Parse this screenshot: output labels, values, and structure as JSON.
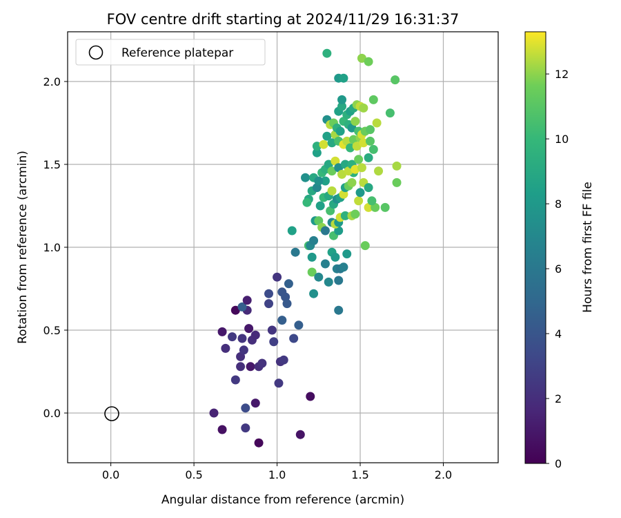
{
  "chart_data": {
    "type": "scatter",
    "title": "FOV centre drift starting at 2024/11/29 16:31:37",
    "xlabel": "Angular distance from reference (arcmin)",
    "ylabel": "Rotation from reference (arcmin)",
    "xlim": [
      -0.26,
      2.33
    ],
    "ylim": [
      -0.3,
      2.3
    ],
    "xticks": [
      0.0,
      0.5,
      1.0,
      1.5,
      2.0
    ],
    "xtick_labels": [
      "0.0",
      "0.5",
      "1.0",
      "1.5",
      "2.0"
    ],
    "yticks": [
      0.0,
      0.5,
      1.0,
      1.5,
      2.0
    ],
    "ytick_labels": [
      "0.0",
      "0.5",
      "1.0",
      "1.5",
      "2.0"
    ],
    "grid": true,
    "legend": {
      "placement": "top-left",
      "entries": [
        "Reference platepar"
      ]
    },
    "reference_marker": {
      "label": "Reference platepar",
      "x": 0.0,
      "y": 0.0
    },
    "colorbar": {
      "label": "Hours from first FF file",
      "colormap": "viridis",
      "range": [
        0,
        13.3
      ],
      "ticks": [
        0,
        2,
        4,
        6,
        8,
        10,
        12
      ],
      "tick_labels": [
        "0",
        "2",
        "4",
        "6",
        "8",
        "10",
        "12"
      ]
    },
    "points": [
      [
        0.62,
        -0.0,
        1.5
      ],
      [
        0.67,
        -0.1,
        0.7
      ],
      [
        0.81,
        -0.09,
        2.5
      ],
      [
        0.89,
        -0.18,
        0.3
      ],
      [
        0.87,
        0.06,
        1.0
      ],
      [
        0.81,
        0.03,
        3.5
      ],
      [
        1.14,
        -0.13,
        0.8
      ],
      [
        1.2,
        0.1,
        0.5
      ],
      [
        0.75,
        0.2,
        2.5
      ],
      [
        0.78,
        0.28,
        2.0
      ],
      [
        0.78,
        0.34,
        2.0
      ],
      [
        0.8,
        0.38,
        2.3
      ],
      [
        0.82,
        0.62,
        1.8
      ],
      [
        0.75,
        0.62,
        0.3
      ],
      [
        0.79,
        0.64,
        4.5
      ],
      [
        0.82,
        0.68,
        1.3
      ],
      [
        0.67,
        0.49,
        1.0
      ],
      [
        0.73,
        0.46,
        2.5
      ],
      [
        0.69,
        0.39,
        2.0
      ],
      [
        0.79,
        0.45,
        2.3
      ],
      [
        0.83,
        0.51,
        1.0
      ],
      [
        0.85,
        0.44,
        2.0
      ],
      [
        0.87,
        0.47,
        1.8
      ],
      [
        0.84,
        0.28,
        1.0
      ],
      [
        0.89,
        0.28,
        2.0
      ],
      [
        0.91,
        0.3,
        2.2
      ],
      [
        0.97,
        0.5,
        2.3
      ],
      [
        0.98,
        0.43,
        2.8
      ],
      [
        1.0,
        0.82,
        2.3
      ],
      [
        0.95,
        0.66,
        3.0
      ],
      [
        0.95,
        0.72,
        3.5
      ],
      [
        1.01,
        0.18,
        2.5
      ],
      [
        1.02,
        0.31,
        2.2
      ],
      [
        1.04,
        0.32,
        2.5
      ],
      [
        1.03,
        0.56,
        4.5
      ],
      [
        1.05,
        0.7,
        4.0
      ],
      [
        1.06,
        0.66,
        4.2
      ],
      [
        1.03,
        0.73,
        4.0
      ],
      [
        1.07,
        0.78,
        4.6
      ],
      [
        1.1,
        0.45,
        3.3
      ],
      [
        1.13,
        0.53,
        4.5
      ],
      [
        1.11,
        0.97,
        6.0
      ],
      [
        1.09,
        1.1,
        8.5
      ],
      [
        1.19,
        1.01,
        10.5
      ],
      [
        1.2,
        1.01,
        7.0
      ],
      [
        1.21,
        0.94,
        8.0
      ],
      [
        1.21,
        0.85,
        11.5
      ],
      [
        1.22,
        0.72,
        7.5
      ],
      [
        1.22,
        1.04,
        6.5
      ],
      [
        1.25,
        0.82,
        7.0
      ],
      [
        1.29,
        0.9,
        6.5
      ],
      [
        1.31,
        0.79,
        7.0
      ],
      [
        1.33,
        0.97,
        8.5
      ],
      [
        1.35,
        0.94,
        8.0
      ],
      [
        1.36,
        0.87,
        6.5
      ],
      [
        1.38,
        0.87,
        6.0
      ],
      [
        1.37,
        0.8,
        6.0
      ],
      [
        1.37,
        0.62,
        6.0
      ],
      [
        1.4,
        0.88,
        6.5
      ],
      [
        1.42,
        0.96,
        8.0
      ],
      [
        1.34,
        1.07,
        10.5
      ],
      [
        1.37,
        1.1,
        8.2
      ],
      [
        1.53,
        1.01,
        11.5
      ],
      [
        1.23,
        1.16,
        8.0
      ],
      [
        1.25,
        1.16,
        11.2
      ],
      [
        1.27,
        1.12,
        12.0
      ],
      [
        1.29,
        1.1,
        6.0
      ],
      [
        1.33,
        1.15,
        7.0
      ],
      [
        1.35,
        1.14,
        12.5
      ],
      [
        1.37,
        1.15,
        8.0
      ],
      [
        1.38,
        1.18,
        12.8
      ],
      [
        1.41,
        1.19,
        9.5
      ],
      [
        1.45,
        1.19,
        12.3
      ],
      [
        1.47,
        1.2,
        11.6
      ],
      [
        1.55,
        1.24,
        12.8
      ],
      [
        1.59,
        1.24,
        11.5
      ],
      [
        1.19,
        1.29,
        9.0
      ],
      [
        1.18,
        1.27,
        10.0
      ],
      [
        1.21,
        1.34,
        9.0
      ],
      [
        1.24,
        1.36,
        7.0
      ],
      [
        1.26,
        1.25,
        8.5
      ],
      [
        1.28,
        1.3,
        10.0
      ],
      [
        1.29,
        1.4,
        8.5
      ],
      [
        1.31,
        1.31,
        9.0
      ],
      [
        1.32,
        1.22,
        10.5
      ],
      [
        1.33,
        1.34,
        12.5
      ],
      [
        1.34,
        1.26,
        9.0
      ],
      [
        1.36,
        1.29,
        7.5
      ],
      [
        1.38,
        1.3,
        8.5
      ],
      [
        1.4,
        1.32,
        12.8
      ],
      [
        1.41,
        1.36,
        8.5
      ],
      [
        1.43,
        1.37,
        11.5
      ],
      [
        1.45,
        1.39,
        12.0
      ],
      [
        1.46,
        1.45,
        9.5
      ],
      [
        1.49,
        1.28,
        12.6
      ],
      [
        1.5,
        1.33,
        8.0
      ],
      [
        1.52,
        1.39,
        12.5
      ],
      [
        1.55,
        1.36,
        9.0
      ],
      [
        1.57,
        1.28,
        10.5
      ],
      [
        1.61,
        1.46,
        12.4
      ],
      [
        1.17,
        1.42,
        7.5
      ],
      [
        1.22,
        1.42,
        9.0
      ],
      [
        1.25,
        1.4,
        7.5
      ],
      [
        1.27,
        1.45,
        10.0
      ],
      [
        1.29,
        1.47,
        9.5
      ],
      [
        1.31,
        1.5,
        9.0
      ],
      [
        1.33,
        1.46,
        11.5
      ],
      [
        1.35,
        1.52,
        12.8
      ],
      [
        1.37,
        1.48,
        7.5
      ],
      [
        1.39,
        1.44,
        12.5
      ],
      [
        1.41,
        1.5,
        9.0
      ],
      [
        1.43,
        1.46,
        12.6
      ],
      [
        1.45,
        1.5,
        9.5
      ],
      [
        1.47,
        1.47,
        13.0
      ],
      [
        1.49,
        1.53,
        11.5
      ],
      [
        1.51,
        1.48,
        12.5
      ],
      [
        1.55,
        1.54,
        9.2
      ],
      [
        1.24,
        1.57,
        8.5
      ],
      [
        1.24,
        1.61,
        9.5
      ],
      [
        1.28,
        1.62,
        12.8
      ],
      [
        1.3,
        1.67,
        8.5
      ],
      [
        1.33,
        1.63,
        9.0
      ],
      [
        1.35,
        1.68,
        12.3
      ],
      [
        1.37,
        1.64,
        10.5
      ],
      [
        1.4,
        1.62,
        13.0
      ],
      [
        1.42,
        1.64,
        12.5
      ],
      [
        1.44,
        1.6,
        10.0
      ],
      [
        1.46,
        1.65,
        11.5
      ],
      [
        1.48,
        1.61,
        12.6
      ],
      [
        1.5,
        1.66,
        12.0
      ],
      [
        1.52,
        1.63,
        12.8
      ],
      [
        1.56,
        1.64,
        11.0
      ],
      [
        1.58,
        1.59,
        10.5
      ],
      [
        1.3,
        1.77,
        7.5
      ],
      [
        1.32,
        1.74,
        12.5
      ],
      [
        1.34,
        1.75,
        11.5
      ],
      [
        1.36,
        1.72,
        9.5
      ],
      [
        1.38,
        1.7,
        8.5
      ],
      [
        1.4,
        1.76,
        10.0
      ],
      [
        1.43,
        1.74,
        9.5
      ],
      [
        1.45,
        1.72,
        8.0
      ],
      [
        1.47,
        1.76,
        12.0
      ],
      [
        1.49,
        1.7,
        10.5
      ],
      [
        1.51,
        1.68,
        12.8
      ],
      [
        1.53,
        1.7,
        11.5
      ],
      [
        1.56,
        1.71,
        11.0
      ],
      [
        1.6,
        1.75,
        12.5
      ],
      [
        1.37,
        1.82,
        8.5
      ],
      [
        1.39,
        1.85,
        9.0
      ],
      [
        1.42,
        1.8,
        9.5
      ],
      [
        1.44,
        1.82,
        8.5
      ],
      [
        1.46,
        1.84,
        9.0
      ],
      [
        1.48,
        1.86,
        12.0
      ],
      [
        1.5,
        1.85,
        12.6
      ],
      [
        1.52,
        1.84,
        12.2
      ],
      [
        1.39,
        1.89,
        8.0
      ],
      [
        1.58,
        1.89,
        11.2
      ],
      [
        1.68,
        1.81,
        10.5
      ],
      [
        1.72,
        1.49,
        12.3
      ],
      [
        1.72,
        1.39,
        11.5
      ],
      [
        1.65,
        1.24,
        11.0
      ],
      [
        1.37,
        2.02,
        8.0
      ],
      [
        1.4,
        2.02,
        8.5
      ],
      [
        1.3,
        2.17,
        9.5
      ],
      [
        1.51,
        2.14,
        12.0
      ],
      [
        1.55,
        2.12,
        11.6
      ],
      [
        1.71,
        2.01,
        11.0
      ]
    ]
  }
}
